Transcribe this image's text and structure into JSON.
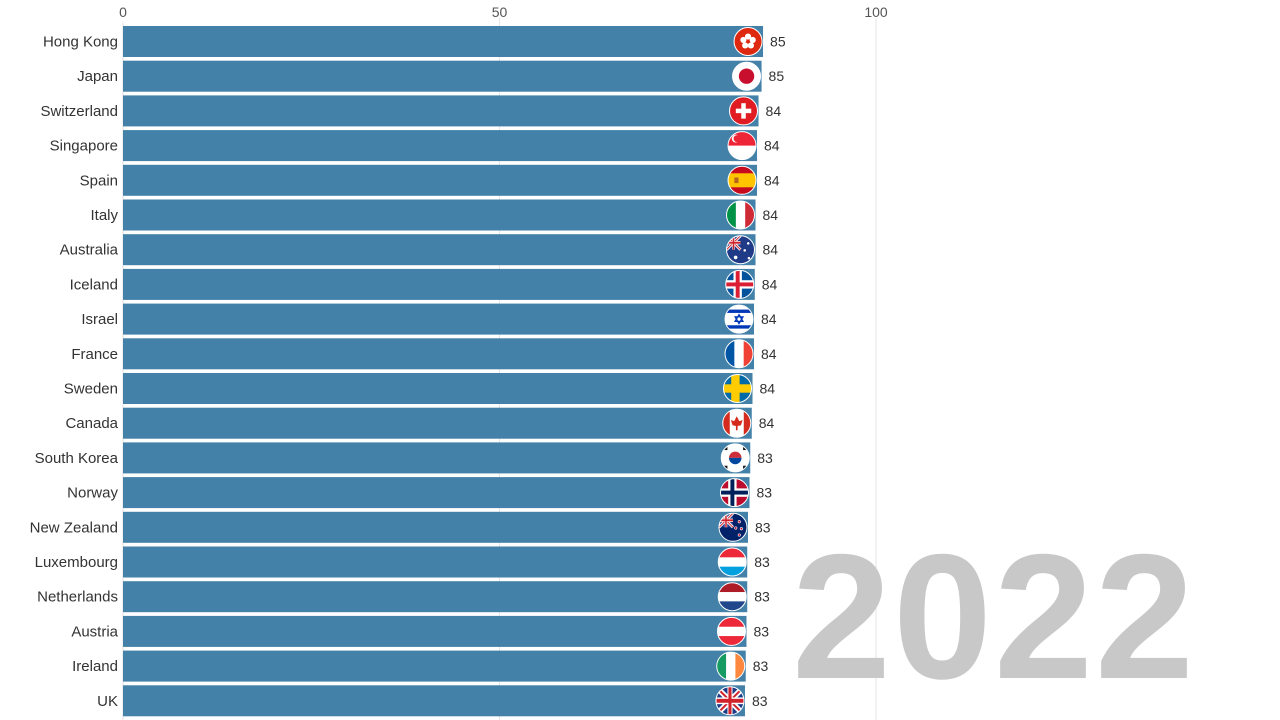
{
  "chart_data": {
    "type": "bar",
    "orientation": "horizontal",
    "period": "2022",
    "xlim": [
      0,
      100
    ],
    "x_ticks": [
      0,
      50,
      100
    ],
    "grid": true,
    "bar_color": "#4381a8",
    "categories": [
      "Hong Kong",
      "Japan",
      "Switzerland",
      "Singapore",
      "Spain",
      "Italy",
      "Australia",
      "Iceland",
      "Israel",
      "France",
      "Sweden",
      "Canada",
      "South Korea",
      "Norway",
      "New Zealand",
      "Luxembourg",
      "Netherlands",
      "Austria",
      "Ireland",
      "UK"
    ],
    "values": [
      85,
      85,
      84,
      84,
      84,
      84,
      84,
      84,
      84,
      84,
      84,
      84,
      83,
      83,
      83,
      83,
      83,
      83,
      83,
      83
    ],
    "bar_values": [
      85.0,
      84.8,
      84.4,
      84.2,
      84.2,
      84.0,
      84.0,
      83.9,
      83.8,
      83.8,
      83.6,
      83.5,
      83.3,
      83.2,
      83.0,
      82.9,
      82.9,
      82.8,
      82.7,
      82.6
    ],
    "flag_icons": [
      "flag-hong-kong-icon",
      "flag-japan-icon",
      "flag-switzerland-icon",
      "flag-singapore-icon",
      "flag-spain-icon",
      "flag-italy-icon",
      "flag-australia-icon",
      "flag-iceland-icon",
      "flag-israel-icon",
      "flag-france-icon",
      "flag-sweden-icon",
      "flag-canada-icon",
      "flag-south-korea-icon",
      "flag-norway-icon",
      "flag-new-zealand-icon",
      "flag-luxembourg-icon",
      "flag-netherlands-icon",
      "flag-austria-icon",
      "flag-ireland-icon",
      "flag-uk-icon"
    ]
  }
}
